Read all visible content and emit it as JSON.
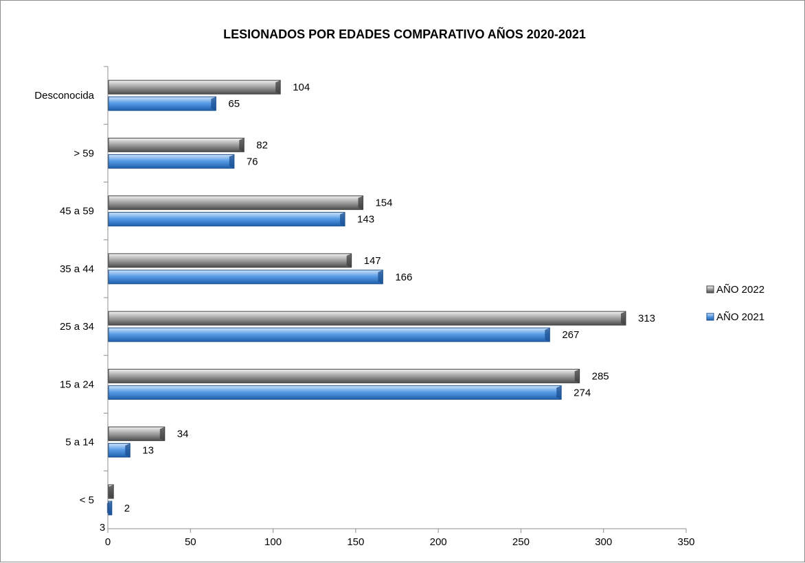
{
  "chart_data": {
    "type": "bar",
    "orientation": "horizontal",
    "title": "LESIONADOS POR EDADES COMPARATIVO AÑOS 2020-2021",
    "categories": [
      "Desconocida",
      "> 59",
      "45 a 59",
      "35 a 44",
      "25 a 34",
      "15 a 24",
      "5 a 14",
      "< 5"
    ],
    "series": [
      {
        "name": "AÑO 2022",
        "values": [
          104,
          82,
          154,
          147,
          313,
          285,
          34,
          3
        ],
        "labels": [
          "104",
          "82",
          "154",
          "147",
          "313",
          "285",
          "34",
          "3"
        ],
        "color": "#8c8c8c"
      },
      {
        "name": "AÑO 2021",
        "values": [
          65,
          76,
          143,
          166,
          267,
          274,
          13,
          2
        ],
        "labels": [
          "65",
          "76",
          "143",
          "166",
          "267",
          "274",
          "13",
          "2"
        ],
        "color": "#4a8fdc"
      }
    ],
    "x_ticks": [
      "0",
      "50",
      "100",
      "150",
      "200",
      "250",
      "300",
      "350"
    ],
    "xlim": [
      0,
      350
    ],
    "grid": false,
    "legend_position": "right"
  }
}
